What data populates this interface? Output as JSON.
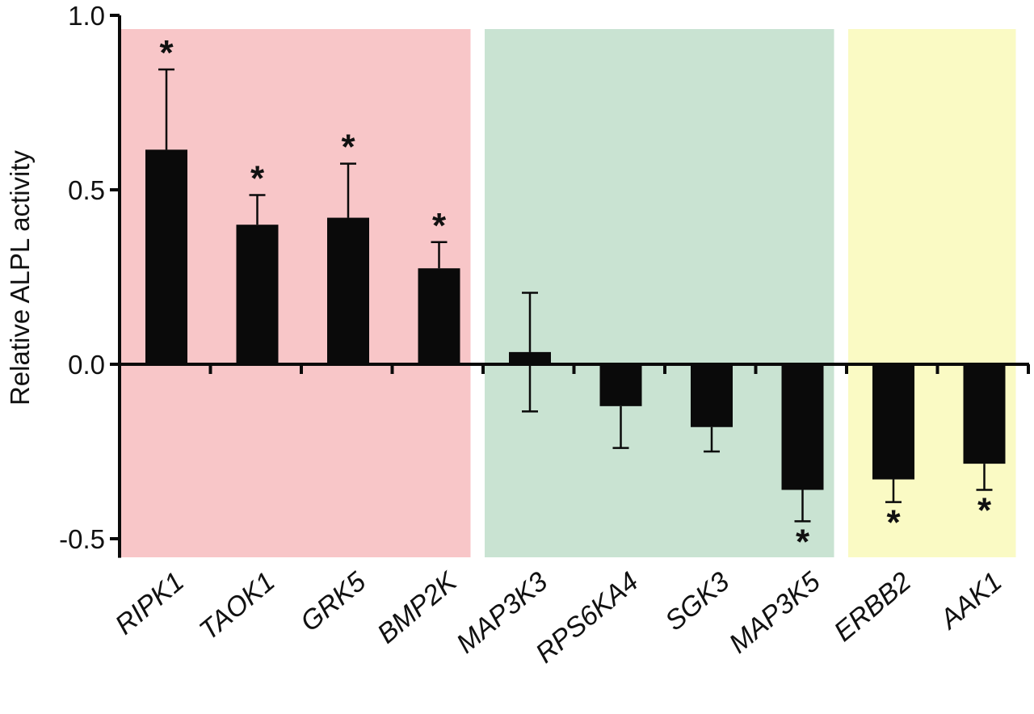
{
  "chart_data": {
    "type": "bar",
    "ylabel": "Relative ALPL activity",
    "ylim": [
      -0.55,
      1.0
    ],
    "yticks": [
      1.0,
      0.5,
      0.0,
      -0.5
    ],
    "ytick_labels": [
      "1.0",
      "0.5",
      "0.0",
      "-0.5"
    ],
    "categories": [
      "RIPK1",
      "TAOK1",
      "GRK5",
      "BMP2K",
      "MAP3K3",
      "RPS6KA4",
      "SGK3",
      "MAP3K5",
      "ERBB2",
      "AAK1"
    ],
    "values": [
      0.615,
      0.4,
      0.42,
      0.275,
      0.035,
      -0.12,
      -0.18,
      -0.36,
      -0.33,
      -0.285
    ],
    "errors": [
      0.23,
      0.085,
      0.155,
      0.075,
      0.17,
      0.12,
      0.07,
      0.09,
      0.065,
      0.075
    ],
    "significant": [
      true,
      true,
      true,
      true,
      false,
      false,
      false,
      true,
      true,
      true
    ],
    "significance_marker": "*",
    "groups": [
      {
        "from": 0,
        "to": 3,
        "color": "#f8c6c8"
      },
      {
        "from": 4,
        "to": 7,
        "color": "#c9e3d2"
      },
      {
        "from": 8,
        "to": 9,
        "color": "#fafac4"
      }
    ],
    "bar_color": "#0a0a0a",
    "grid": false,
    "legend": "none"
  }
}
